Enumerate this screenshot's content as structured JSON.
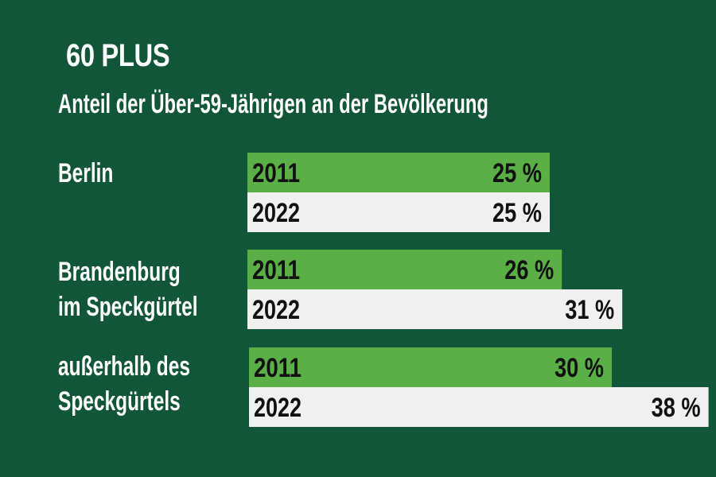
{
  "colors": {
    "background": "#12563a",
    "bar_2011": "#5aaf46",
    "bar_2022": "#f0f0f0",
    "text_dark": "#111111",
    "text_light": "#ffffff"
  },
  "chart_data": {
    "type": "bar",
    "orientation": "horizontal",
    "title": "60 PLUS",
    "subtitle": "Anteil der Über-59-Jährigen an der Bevölkerung",
    "unit": "%",
    "xlim": [
      0,
      40
    ],
    "groups": [
      {
        "label_lines": [
          "Berlin"
        ],
        "bars": [
          {
            "year": "2011",
            "value": 25,
            "value_label": "25 %"
          },
          {
            "year": "2022",
            "value": 25,
            "value_label": "25 %"
          }
        ]
      },
      {
        "label_lines": [
          "Brandenburg",
          "im Speckgürtel"
        ],
        "bars": [
          {
            "year": "2011",
            "value": 26,
            "value_label": "26 %"
          },
          {
            "year": "2022",
            "value": 31,
            "value_label": "31 %"
          }
        ]
      },
      {
        "label_lines": [
          "außerhalb des",
          "Speckgürtels"
        ],
        "bars": [
          {
            "year": "2011",
            "value": 30,
            "value_label": "30 %"
          },
          {
            "year": "2022",
            "value": 38,
            "value_label": "38 %"
          }
        ]
      }
    ]
  }
}
